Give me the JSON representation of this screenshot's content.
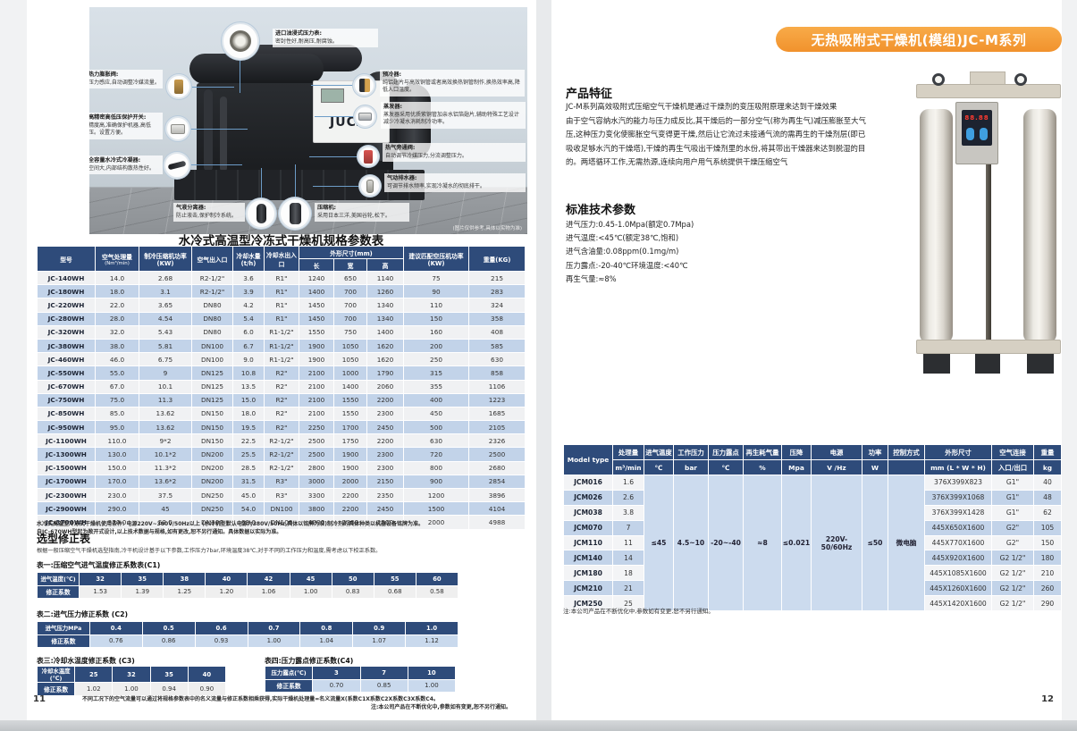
{
  "left_page": {
    "page_number": "11",
    "photo": {
      "brand": "JUCAI",
      "caption": "(图片仅供参考,具体以实物为准)",
      "callout_top": {
        "title": "进口油浸式压力表:",
        "desc": "密封性好,耐高压,耐腐蚀。"
      },
      "callouts_left": [
        {
          "title": "热力膨胀阀:",
          "desc": "压力感应,自动调整冷媒流量。"
        },
        {
          "title": "高精密高低压保护开关:",
          "desc": "精度高,准确保护机器,高低压。设置方便。"
        },
        {
          "title": "全容量水冷式冷凝器:",
          "desc": "空间大,内部结构散热性好。"
        }
      ],
      "callouts_right": [
        {
          "title": "预冷器:",
          "desc": "纯铝翅片与高效铜管或者高效换热铜管制作,换热效率高,降低入口温度。"
        },
        {
          "title": "蒸发器:",
          "desc": "蒸发器采用优质紫铜管加亲水铝箔翅片,辅助特殊工艺设计减少冷凝水消耗制冷功率。"
        },
        {
          "title": "热气旁通阀:",
          "desc": "自动调节冷媒压力,分流调整压力。"
        },
        {
          "title": "气动排水器:",
          "desc": "可调节排水频率,实现冷凝水的彻底排干。"
        }
      ],
      "callouts_bottom": [
        {
          "title": "气液分离器:",
          "desc": "防止液击,保护制冷系统。"
        },
        {
          "title": "压缩机:",
          "desc": "采用日本三洋,美国谷轮,松下。"
        }
      ],
      "icons": [
        "gauge-icon",
        "valve-icon",
        "switch-icon",
        "condenser-icon",
        "precooler-icon",
        "evaporator-icon",
        "bypass-valve-icon",
        "drainer-icon",
        "separator-icon",
        "compressor-icon"
      ]
    },
    "main_table": {
      "title": "水冷式高温型冷冻式干燥机规格参数表",
      "h": {
        "model": "型号",
        "air": "空气处理量",
        "air_u": "(Nm³/min)",
        "comp": "制冷压缩机功率(KW)",
        "aio": "空气出入口",
        "water": "冷却水量(t/h)",
        "wio": "冷却水出入口",
        "dims": "外形尺寸(mm)",
        "len": "长",
        "wid": "宽",
        "hei": "高",
        "rec": "建议匹配空压机功率(KW)",
        "wt": "重量(KG)"
      },
      "rows": [
        [
          "JC-140WH",
          "14.0",
          "2.68",
          "R2-1/2\"",
          "3.6",
          "R1\"",
          "1240",
          "650",
          "1140",
          "75",
          "215"
        ],
        [
          "JC-180WH",
          "18.0",
          "3.1",
          "R2-1/2\"",
          "3.9",
          "R1\"",
          "1400",
          "700",
          "1260",
          "90",
          "283"
        ],
        [
          "JC-220WH",
          "22.0",
          "3.65",
          "DN80",
          "4.2",
          "R1\"",
          "1450",
          "700",
          "1340",
          "110",
          "324"
        ],
        [
          "JC-280WH",
          "28.0",
          "4.54",
          "DN80",
          "5.4",
          "R1\"",
          "1450",
          "700",
          "1340",
          "150",
          "358"
        ],
        [
          "JC-320WH",
          "32.0",
          "5.43",
          "DN80",
          "6.0",
          "R1-1/2\"",
          "1550",
          "750",
          "1400",
          "160",
          "408"
        ],
        [
          "JC-380WH",
          "38.0",
          "5.81",
          "DN100",
          "6.7",
          "R1-1/2\"",
          "1900",
          "1050",
          "1620",
          "200",
          "585"
        ],
        [
          "JC-460WH",
          "46.0",
          "6.75",
          "DN100",
          "9.0",
          "R1-1/2\"",
          "1900",
          "1050",
          "1620",
          "250",
          "630"
        ],
        [
          "JC-550WH",
          "55.0",
          "9",
          "DN125",
          "10.8",
          "R2\"",
          "2100",
          "1000",
          "1790",
          "315",
          "858"
        ],
        [
          "JC-670WH",
          "67.0",
          "10.1",
          "DN125",
          "13.5",
          "R2\"",
          "2100",
          "1400",
          "2060",
          "355",
          "1106"
        ],
        [
          "JC-750WH",
          "75.0",
          "11.3",
          "DN125",
          "15.0",
          "R2\"",
          "2100",
          "1550",
          "2200",
          "400",
          "1223"
        ],
        [
          "JC-850WH",
          "85.0",
          "13.62",
          "DN150",
          "18.0",
          "R2\"",
          "2100",
          "1550",
          "2300",
          "450",
          "1685"
        ],
        [
          "JC-950WH",
          "95.0",
          "13.62",
          "DN150",
          "19.5",
          "R2\"",
          "2250",
          "1700",
          "2450",
          "500",
          "2105"
        ],
        [
          "JC-1100WH",
          "110.0",
          "9*2",
          "DN150",
          "22.5",
          "R2-1/2\"",
          "2500",
          "1750",
          "2200",
          "630",
          "2326"
        ],
        [
          "JC-1300WH",
          "130.0",
          "10.1*2",
          "DN200",
          "25.5",
          "R2-1/2\"",
          "2500",
          "1900",
          "2300",
          "720",
          "2500"
        ],
        [
          "JC-1500WH",
          "150.0",
          "11.3*2",
          "DN200",
          "28.5",
          "R2-1/2\"",
          "2800",
          "1900",
          "2300",
          "800",
          "2680"
        ],
        [
          "JC-1700WH",
          "170.0",
          "13.6*2",
          "DN200",
          "31.5",
          "R3\"",
          "3000",
          "2000",
          "2150",
          "900",
          "2854"
        ],
        [
          "JC-2300WH",
          "230.0",
          "37.5",
          "DN250",
          "45.0",
          "R3\"",
          "3300",
          "2200",
          "2350",
          "1200",
          "3896"
        ],
        [
          "JC-2900WH",
          "290.0",
          "45",
          "DN250",
          "54.0",
          "DN100",
          "3800",
          "2200",
          "2450",
          "1500",
          "4104"
        ],
        [
          "JC-3700WH",
          "370.0",
          "52.5",
          "DN300",
          "63.0",
          "DN100",
          "4200",
          "2300",
          "2500",
          "2000",
          "4988"
        ]
      ]
    },
    "notes": [
      "水冷式高温型冷冻式干燥机使用条件: 电源220V~380V/50Hz以上 (水冷机型默认电源为380V/50Hz,具体以铭牌为准)制冷剂的具体种类以机器设备铭牌为准。",
      "自JC-670WH型起为敞开式设计,以上技术数据与规格,如有更改,恕不另行通知。具体数据以实际为准。"
    ],
    "selection": {
      "title": "选型修正表",
      "subtitle": "根据一般压缩空气干燥机选型指南,冷干机设计基于以下参数,工作压力7bar,环境温度38℃,对于不同的工作压力和温度,需考虑以下校正系数。"
    },
    "c1": {
      "label": "表一:压缩空气进气温度修正系数表(C1)",
      "row1_head": "进气温度(℃)",
      "row2_head": "修正系数",
      "row1": [
        "32",
        "35",
        "38",
        "40",
        "42",
        "45",
        "50",
        "55",
        "60"
      ],
      "row2": [
        "1.53",
        "1.39",
        "1.25",
        "1.20",
        "1.06",
        "1.00",
        "0.83",
        "0.68",
        "0.58"
      ]
    },
    "c2": {
      "label": "表二:进气压力修正系数 (C2)",
      "row1_head": "进气压力MPa",
      "row2_head": "修正系数",
      "row1": [
        "0.4",
        "0.5",
        "0.6",
        "0.7",
        "0.8",
        "0.9",
        "1.0"
      ],
      "row2": [
        "0.76",
        "0.86",
        "0.93",
        "1.00",
        "1.04",
        "1.07",
        "1.12"
      ]
    },
    "c3": {
      "label": "表三:冷却水温度修正系数 (C3)",
      "row1_head": "冷却水温度(℃)",
      "row2_head": "修正系数",
      "row1": [
        "25",
        "32",
        "35",
        "40"
      ],
      "row2": [
        "1.02",
        "1.00",
        "0.94",
        "0.90"
      ]
    },
    "c4": {
      "label": "表四:压力露点修正系数(C4)",
      "row1_head": "压力露点(℃)",
      "row2_head": "修正系数",
      "row1": [
        "3",
        "7",
        "10"
      ],
      "row2": [
        "0.70",
        "0.85",
        "1.00"
      ]
    },
    "bottom_notes": [
      "不同工况下的空气流量可以通过将规格参数表中的名义流量与修正系数相乘获得,实际干燥机处理量=名义流量X(系数C1X系数C2X系数C3X系数C4。",
      "注:本公司产品在不断优化中,参数如有变更,恕不另行通知。"
    ]
  },
  "right_page": {
    "page_number": "12",
    "banner": "无热吸附式干燥机(模组)JC-M系列",
    "features": {
      "title": "产品特征",
      "p1": "JC-M系列高效吸附式压缩空气干燥机是通过干燥剂的变压吸附原理来达到干燥效果",
      "p2": "由于空气容纳水汽的能力与压力成反比,其干燥后的一部分空气(称为再生气)减压膨胀至大气压,这种压力变化使膨胀空气变得更干燥,然后让它流过未接通气流的需再生的干燥剂层(即已吸收足够水汽的干燥塔),干燥的再生气吸出干燥剂里的水份,将其带出干燥器来达到脱湿的目的。两塔循环工作,无需热源,连续向用户用气系统提供干燥压缩空气"
    },
    "standard": {
      "title": "标准技术参数",
      "lines": [
        "进气压力:0.45-1.0Mpa(额定0.7Mpa)",
        "进气温度:<45℃(额定38℃,饱和)",
        "进气含油量:0.08ppm(0.1mg/m)",
        "压力露点:-20-40℃环境温度:<40℃",
        "再生气量:≈8%"
      ]
    },
    "jcm_table": {
      "h": {
        "model": "Model type",
        "cap": "处理量",
        "cap_u": "m³/min",
        "temp": "进气温度",
        "temp_u": "℃",
        "wp": "工作压力",
        "wp_u": "bar",
        "dew": "压力露点",
        "dew_u": "℃",
        "regen": "再生耗气量",
        "regen_u": "%",
        "drop": "压降",
        "drop_u": "Mpa",
        "supply": "电源",
        "supply_u": "V /Hz",
        "watt": "功率",
        "watt_u": "W",
        "ctrl": "控制方式",
        "ctrl_u": "",
        "dims": "外形尺寸",
        "dims_u": "mm (L * W * H)",
        "conn": "空气连接",
        "conn_u": "入口/出口",
        "wt": "重量",
        "wt_u": "kg"
      },
      "shared": {
        "temp": "≤45",
        "pressure": "4.5~10",
        "dew": "-20~-40",
        "regen": "≈8",
        "drop": "≤0.021",
        "supply": "220V-50/60Hz",
        "watt": "≤50",
        "control": "微电脑"
      },
      "rows": [
        [
          "JCM016",
          "1.6",
          "376X399X823",
          "G1\"",
          "40"
        ],
        [
          "JCM026",
          "2.6",
          "376X399X1068",
          "G1\"",
          "48"
        ],
        [
          "JCM038",
          "3.8",
          "376X399X1428",
          "G1\"",
          "62"
        ],
        [
          "JCM070",
          "7",
          "445X650X1600",
          "G2\"",
          "105"
        ],
        [
          "JCM110",
          "11",
          "445X770X1600",
          "G2\"",
          "150"
        ],
        [
          "JCM140",
          "14",
          "445X920X1600",
          "G2 1/2\"",
          "180"
        ],
        [
          "JCM180",
          "18",
          "445X1085X1600",
          "G2 1/2\"",
          "210"
        ],
        [
          "JCM210",
          "21",
          "445X1260X1600",
          "G2 1/2\"",
          "260"
        ],
        [
          "JCM250",
          "25",
          "445X1420X1600",
          "G2 1/2\"",
          "290"
        ]
      ],
      "note": "注:本公司产品在不断优化中,参数如有变更,恕不另行通知。"
    },
    "colors": {
      "banner_orange": "#f29b38",
      "header_navy": "#2e4b7a",
      "row_blue": "#c2d3e9",
      "row_gray": "#f0f1f3"
    }
  }
}
